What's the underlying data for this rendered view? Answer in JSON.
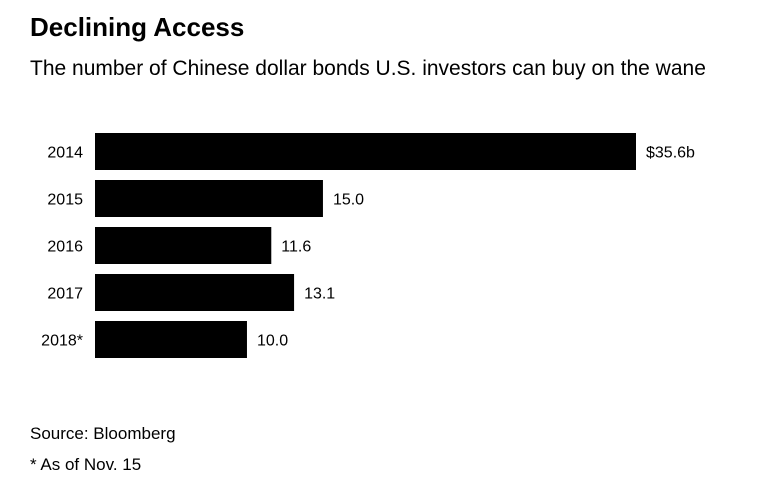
{
  "chart_data": {
    "type": "bar",
    "orientation": "horizontal",
    "title": "Declining Access",
    "subtitle": "The number of Chinese dollar bonds U.S. investors can buy on the wane",
    "categories": [
      "2014",
      "2015",
      "2016",
      "2017",
      "2018*"
    ],
    "values": [
      35.6,
      15.0,
      11.6,
      13.1,
      10.0
    ],
    "value_labels": [
      "$35.6b",
      "15.0",
      "11.6",
      "13.1",
      "10.0"
    ],
    "unit": "billion USD",
    "xlim": [
      0,
      35.6
    ],
    "grid": false,
    "bar_color": "#000000",
    "source": "Source: Bloomberg",
    "footnote": "* As of Nov. 15"
  }
}
